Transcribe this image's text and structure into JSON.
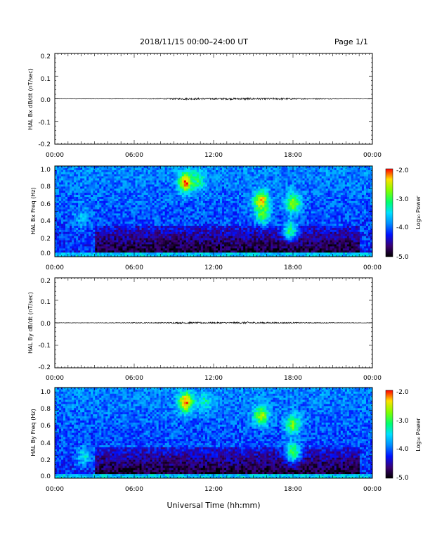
{
  "header": {
    "title": "2018/11/15  00:00–24:00 UT",
    "page": "Page 1/1"
  },
  "footer": {
    "xlabel": "Universal Time (hh:mm)"
  },
  "chart_data": [
    {
      "type": "line",
      "ylabel": "HAL Bx dB/dt (nT/sec)",
      "xlim": [
        0,
        24
      ],
      "ylim": [
        -0.2,
        0.2
      ],
      "xticks": [
        "00:00",
        "06:00",
        "12:00",
        "18:00",
        "00:00"
      ],
      "yticks": [
        "0.2",
        "0.1",
        "0.0",
        "-0.1",
        "-0.2"
      ],
      "series": [
        {
          "x": [
            0,
            2,
            4,
            6,
            8,
            9,
            10,
            11,
            12,
            13,
            14,
            14.5,
            15,
            16,
            17,
            18,
            19,
            20,
            22,
            24
          ],
          "amplitude": [
            0.001,
            0.001,
            0.001,
            0.001,
            0.002,
            0.003,
            0.004,
            0.004,
            0.003,
            0.004,
            0.004,
            0.005,
            0.004,
            0.004,
            0.004,
            0.003,
            0.002,
            0.002,
            0.001,
            0.001
          ]
        }
      ]
    },
    {
      "type": "heatmap",
      "ylabel": "HAL Bx Freq (Hz)",
      "xlim": [
        0,
        24
      ],
      "ylim": [
        0,
        1.05
      ],
      "xticks": [
        "00:00",
        "06:00",
        "12:00",
        "18:00",
        "00:00"
      ],
      "yticks": [
        "1.0",
        "0.8",
        "0.6",
        "0.4",
        "0.2",
        "0.0"
      ],
      "colorbar": {
        "label": "Log₁₀ Power",
        "range": [
          -5.0,
          -2.0
        ],
        "ticks": [
          "-2.0",
          "-3.0",
          "-4.0",
          "-5.0"
        ]
      },
      "features": [
        {
          "t": 9.9,
          "f": 0.86,
          "log_power": -2.1
        },
        {
          "t": 10.8,
          "f": 0.88,
          "log_power": -3.1
        },
        {
          "t": 15.6,
          "f": 0.65,
          "log_power": -2.3
        },
        {
          "t": 15.7,
          "f": 0.5,
          "log_power": -2.8
        },
        {
          "t": 18.0,
          "f": 0.62,
          "log_power": -2.6
        },
        {
          "t": 17.8,
          "f": 0.3,
          "log_power": -3.1
        },
        {
          "t": 2.0,
          "f": 0.45,
          "log_power": -3.7
        }
      ]
    },
    {
      "type": "line",
      "ylabel": "HAL By dB/dt (nT/sec)",
      "xlim": [
        0,
        24
      ],
      "ylim": [
        -0.2,
        0.2
      ],
      "xticks": [
        "00:00",
        "06:00",
        "12:00",
        "18:00",
        "00:00"
      ],
      "yticks": [
        "0.2",
        "0.1",
        "0.0",
        "-0.1",
        "-0.2"
      ],
      "series": [
        {
          "x": [
            0,
            2,
            4,
            6,
            8,
            9,
            10,
            11,
            12,
            13,
            14,
            14.5,
            15,
            16,
            17,
            18,
            19,
            20,
            22,
            24
          ],
          "amplitude": [
            0.001,
            0.001,
            0.001,
            0.002,
            0.002,
            0.003,
            0.004,
            0.003,
            0.003,
            0.003,
            0.004,
            0.005,
            0.004,
            0.003,
            0.003,
            0.003,
            0.002,
            0.002,
            0.001,
            0.001
          ]
        }
      ]
    },
    {
      "type": "heatmap",
      "ylabel": "HAL By Freq (Hz)",
      "xlim": [
        0,
        24
      ],
      "ylim": [
        0,
        1.05
      ],
      "xticks": [
        "00:00",
        "06:00",
        "12:00",
        "18:00",
        "00:00"
      ],
      "yticks": [
        "1.0",
        "0.8",
        "0.6",
        "0.4",
        "0.2",
        "0.0"
      ],
      "colorbar": {
        "label": "Log₁₀ Power",
        "range": [
          -5.0,
          -2.0
        ],
        "ticks": [
          "-2.0",
          "-3.0",
          "-4.0",
          "-5.0"
        ]
      },
      "features": [
        {
          "t": 9.9,
          "f": 0.88,
          "log_power": -2.1
        },
        {
          "t": 11.3,
          "f": 0.88,
          "log_power": -3.3
        },
        {
          "t": 15.6,
          "f": 0.72,
          "log_power": -2.6
        },
        {
          "t": 18.0,
          "f": 0.62,
          "log_power": -2.8
        },
        {
          "t": 18.0,
          "f": 0.3,
          "log_power": -2.9
        },
        {
          "t": 2.2,
          "f": 0.25,
          "log_power": -3.5
        }
      ]
    }
  ]
}
